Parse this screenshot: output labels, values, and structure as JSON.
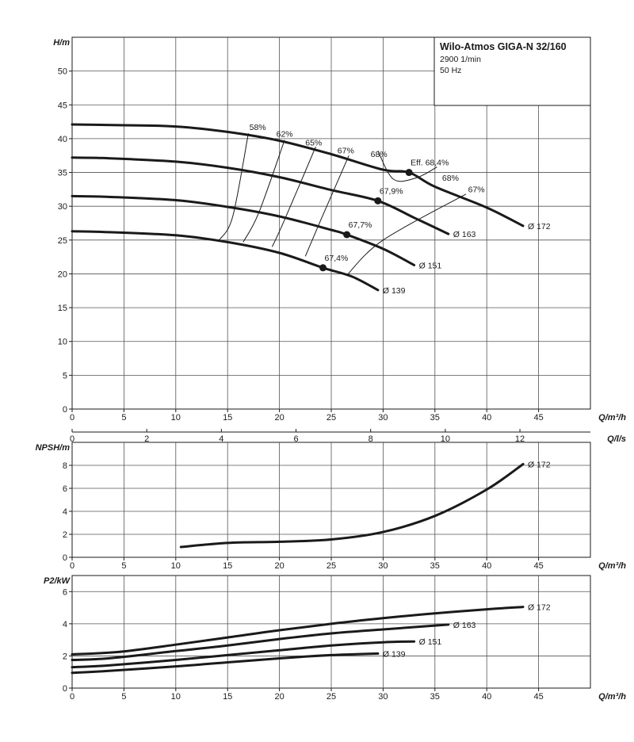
{
  "title_box": {
    "title": "Wilo-Atmos GIGA-N 32/160",
    "line1": "2900 1/min",
    "line2": "50 Hz"
  },
  "chart_data": [
    {
      "id": "head",
      "type": "line",
      "ylabel": "H/m",
      "xlabel": "Q/m³/h",
      "xlim": [
        0,
        50
      ],
      "ylim": [
        0,
        55
      ],
      "xticks": [
        0,
        5,
        10,
        15,
        20,
        25,
        30,
        35,
        40,
        45
      ],
      "yticks": [
        0,
        5,
        10,
        15,
        20,
        25,
        30,
        35,
        40,
        45,
        50
      ],
      "secondary_x": {
        "label": "Q/l/s",
        "ticks": [
          0,
          2,
          4,
          6,
          8,
          10,
          12
        ]
      },
      "series": [
        {
          "name": "Ø 172",
          "points": [
            [
              0,
              42.1
            ],
            [
              4.5,
              42.0
            ],
            [
              10,
              41.8
            ],
            [
              15,
              41.0
            ],
            [
              20,
              39.7
            ],
            [
              25,
              37.7
            ],
            [
              30,
              35.4
            ],
            [
              32.5,
              35.0
            ],
            [
              35,
              32.9
            ],
            [
              40,
              29.8
            ],
            [
              43.5,
              27.1
            ]
          ]
        },
        {
          "name": "Ø 163",
          "points": [
            [
              0,
              37.2
            ],
            [
              3.5,
              37.1
            ],
            [
              10,
              36.6
            ],
            [
              15,
              35.7
            ],
            [
              20,
              34.3
            ],
            [
              25,
              32.4
            ],
            [
              29.5,
              30.8
            ],
            [
              33,
              28.3
            ],
            [
              36.3,
              25.9
            ]
          ]
        },
        {
          "name": "Ø 151",
          "points": [
            [
              0,
              31.5
            ],
            [
              3.3,
              31.4
            ],
            [
              10,
              30.9
            ],
            [
              15,
              29.9
            ],
            [
              20,
              28.5
            ],
            [
              25,
              26.5
            ],
            [
              26.5,
              25.8
            ],
            [
              30,
              23.7
            ],
            [
              33,
              21.3
            ]
          ]
        },
        {
          "name": "Ø 139",
          "points": [
            [
              0,
              26.3
            ],
            [
              3.0,
              26.2
            ],
            [
              10,
              25.7
            ],
            [
              15,
              24.7
            ],
            [
              20,
              23.1
            ],
            [
              24.2,
              20.9
            ],
            [
              27,
              19.6
            ],
            [
              29.5,
              17.6
            ]
          ]
        }
      ],
      "efficiency_lines": [
        {
          "label": "58%",
          "points": [
            [
              14.2,
              25.0
            ],
            [
              15.5,
              28.5
            ],
            [
              17.0,
              40.8
            ]
          ]
        },
        {
          "label": "62%",
          "points": [
            [
              16.5,
              24.7
            ],
            [
              18.0,
              29.0
            ],
            [
              20.5,
              39.8
            ]
          ]
        },
        {
          "label": "65%",
          "points": [
            [
              19.3,
              24.0
            ],
            [
              20.5,
              28.0
            ],
            [
              23.5,
              38.8
            ]
          ]
        },
        {
          "label": "67%",
          "points": [
            [
              22.5,
              22.6
            ],
            [
              24.0,
              28.0
            ],
            [
              26.7,
              37.5
            ]
          ]
        },
        {
          "label": "67%",
          "points": [
            [
              26.5,
              19.8
            ],
            [
              30.0,
              25.0
            ],
            [
              38.0,
              31.8
            ]
          ]
        }
      ],
      "best_efficiency_points": [
        {
          "label": "Eff. 68,4%",
          "x": 32.5,
          "y": 35.0
        },
        {
          "label": "67,9%",
          "x": 29.5,
          "y": 30.8
        },
        {
          "label": "67,7%",
          "x": 26.5,
          "y": 25.8
        },
        {
          "label": "67,4%",
          "x": 24.2,
          "y": 20.9
        }
      ],
      "annotations": [
        "58%",
        "62%",
        "65%",
        "67%",
        "68%",
        "68%",
        "67%"
      ]
    },
    {
      "id": "npsh",
      "type": "line",
      "ylabel": "NPSH/m",
      "xlabel": "Q/m³/h",
      "xlim": [
        0,
        50
      ],
      "ylim": [
        0,
        10
      ],
      "xticks": [
        0,
        5,
        10,
        15,
        20,
        25,
        30,
        35,
        40,
        45
      ],
      "yticks": [
        0,
        2,
        4,
        6,
        8
      ],
      "series": [
        {
          "name": "Ø 172",
          "points": [
            [
              10.5,
              0.9
            ],
            [
              15,
              1.25
            ],
            [
              20,
              1.35
            ],
            [
              25,
              1.55
            ],
            [
              30,
              2.2
            ],
            [
              35,
              3.6
            ],
            [
              40,
              5.9
            ],
            [
              43.5,
              8.1
            ]
          ]
        }
      ]
    },
    {
      "id": "power",
      "type": "line",
      "ylabel": "P2/kW",
      "xlabel": "Q/m³/h",
      "xlim": [
        0,
        50
      ],
      "ylim": [
        0,
        7
      ],
      "xticks": [
        0,
        5,
        10,
        15,
        20,
        25,
        30,
        35,
        40,
        45
      ],
      "yticks": [
        0,
        2,
        4,
        6
      ],
      "series": [
        {
          "name": "Ø 172",
          "points": [
            [
              0,
              2.1
            ],
            [
              4.5,
              2.25
            ],
            [
              10,
              2.7
            ],
            [
              15,
              3.15
            ],
            [
              20,
              3.6
            ],
            [
              25,
              4.0
            ],
            [
              30,
              4.35
            ],
            [
              35,
              4.65
            ],
            [
              40,
              4.9
            ],
            [
              43.5,
              5.05
            ]
          ]
        },
        {
          "name": "Ø 163",
          "points": [
            [
              0,
              1.75
            ],
            [
              3.5,
              1.85
            ],
            [
              10,
              2.3
            ],
            [
              15,
              2.65
            ],
            [
              20,
              3.05
            ],
            [
              25,
              3.4
            ],
            [
              30,
              3.65
            ],
            [
              36.3,
              3.95
            ]
          ]
        },
        {
          "name": "Ø 151",
          "points": [
            [
              0,
              1.3
            ],
            [
              3.3,
              1.4
            ],
            [
              10,
              1.75
            ],
            [
              15,
              2.05
            ],
            [
              20,
              2.35
            ],
            [
              25,
              2.65
            ],
            [
              30,
              2.85
            ],
            [
              33,
              2.9
            ]
          ]
        },
        {
          "name": "Ø 139",
          "points": [
            [
              0,
              0.95
            ],
            [
              3.0,
              1.05
            ],
            [
              10,
              1.35
            ],
            [
              15,
              1.6
            ],
            [
              20,
              1.85
            ],
            [
              25,
              2.05
            ],
            [
              29.5,
              2.15
            ]
          ]
        }
      ]
    }
  ]
}
